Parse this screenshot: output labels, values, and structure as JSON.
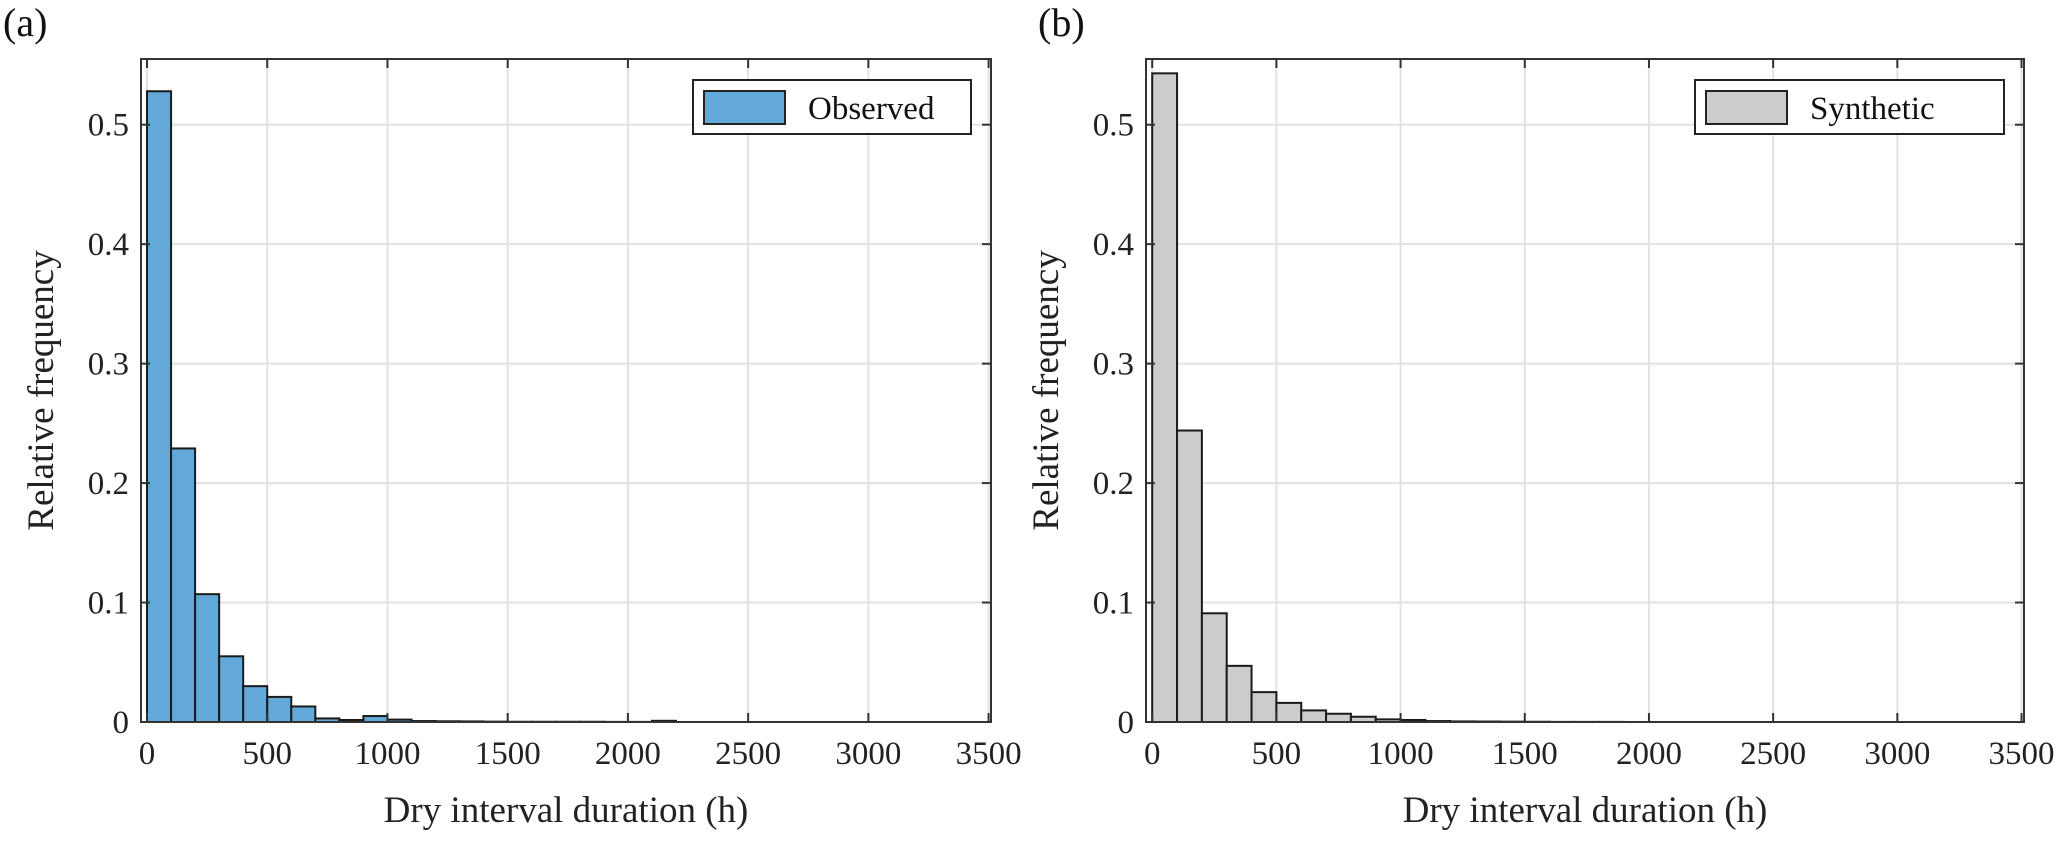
{
  "chart_data": [
    {
      "type": "bar",
      "panel_label": "(a)",
      "legend": "Observed",
      "legend_placement": "top-right",
      "xlabel": "Dry interval duration (h)",
      "ylabel": "Relative frequency",
      "xlim": [
        -25,
        3510
      ],
      "ylim": [
        0,
        0.555
      ],
      "xticks": [
        0,
        500,
        1000,
        1500,
        2000,
        2500,
        3000,
        3500
      ],
      "yticks": [
        0,
        0.1,
        0.2,
        0.3,
        0.4,
        0.5
      ],
      "grid": true,
      "bin_width": 100,
      "bin_start": 0,
      "color": "#62A8D8",
      "values": [
        0.528,
        0.229,
        0.107,
        0.055,
        0.03,
        0.021,
        0.013,
        0.003,
        0.0017,
        0.005,
        0.002,
        0.0008,
        0.0006,
        0.0005,
        0.0003,
        0.0002,
        0.0002,
        0.0002,
        0.0002,
        0.0001,
        0.0001,
        0.001
      ]
    },
    {
      "type": "bar",
      "panel_label": "(b)",
      "legend": "Synthetic",
      "legend_placement": "top-right",
      "xlabel": "Dry interval duration (h)",
      "ylabel": "Relative frequency",
      "xlim": [
        -25,
        3510
      ],
      "ylim": [
        0,
        0.555
      ],
      "xticks": [
        0,
        500,
        1000,
        1500,
        2000,
        2500,
        3000,
        3500
      ],
      "yticks": [
        0,
        0.1,
        0.2,
        0.3,
        0.4,
        0.5
      ],
      "grid": true,
      "bin_width": 100,
      "bin_start": 0,
      "color": "#CCCCCC",
      "values": [
        0.543,
        0.244,
        0.091,
        0.047,
        0.025,
        0.016,
        0.0097,
        0.0069,
        0.0044,
        0.0022,
        0.0017,
        0.0008,
        0.0005,
        0.0004,
        0.0003,
        0.0002,
        0.0001,
        0.0001,
        0.0001
      ]
    }
  ]
}
